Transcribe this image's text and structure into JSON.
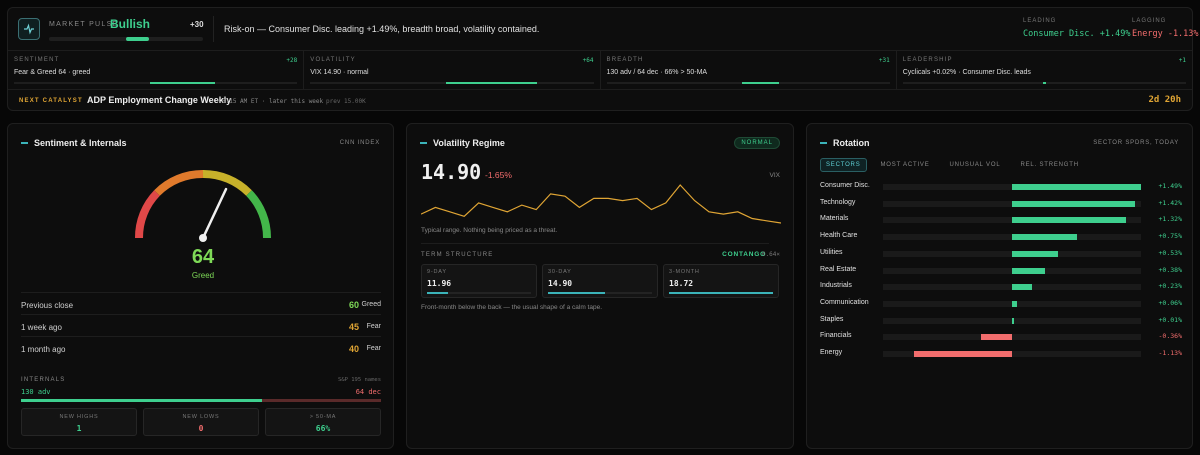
{
  "pulse": {
    "label": "MARKET PULSE",
    "value": "Bullish",
    "score": "+30",
    "summary": "Risk-on — Consumer Disc. leading +1.49%, breadth broad, volatility contained.",
    "leading_label": "LEADING",
    "leading_value": "Consumer Disc. +1.49%",
    "lagging_label": "LAGGING",
    "lagging_value": "Energy -1.13%"
  },
  "metrics": [
    {
      "title": "SENTIMENT",
      "score": "+28",
      "desc": "Fear & Greed 64 · greed",
      "fill": 0.23
    },
    {
      "title": "VOLATILITY",
      "score": "+64",
      "desc": "VIX 14.90 · normal",
      "fill": 0.32
    },
    {
      "title": "BREADTH",
      "score": "+31",
      "desc": "130 adv / 64 dec · 66% > 50-MA",
      "fill": 0.13
    },
    {
      "title": "LEADERSHIP",
      "score": "+1",
      "desc": "Cyclicals +0.02% · Consumer Disc. leads",
      "fill": 0.01
    }
  ],
  "catalyst": {
    "label": "NEXT CATALYST",
    "name": "ADP Employment Change Weekly",
    "when": "8:15 AM ET · later this week",
    "prev": "prev 15.00K",
    "countdown": "2d 20h"
  },
  "sentiment": {
    "title": "Sentiment & Internals",
    "subtitle": "CNN INDEX",
    "value": "64",
    "rating": "Greed",
    "gauge_value": 64,
    "history": [
      {
        "label": "Previous close",
        "value": "60",
        "word": "Greed",
        "color": "#7ed957"
      },
      {
        "label": "1 week ago",
        "value": "45",
        "word": "Fear",
        "color": "#e0a534"
      },
      {
        "label": "1 month ago",
        "value": "40",
        "word": "Fear",
        "color": "#e0a534"
      }
    ],
    "internals_label": "INTERNALS",
    "internals_sub": "S&P 195 names",
    "adv": "130 adv",
    "dec": "64 dec",
    "adv_fraction": 0.67,
    "stats": [
      {
        "label": "NEW HIGHS",
        "value": "1",
        "color": "#3ecf8e"
      },
      {
        "label": "NEW LOWS",
        "value": "0",
        "color": "#f26d6d"
      },
      {
        "label": "> 50-MA",
        "value": "66%",
        "color": "#3ecf8e"
      }
    ]
  },
  "volatility": {
    "title": "Volatility Regime",
    "badge": "NORMAL",
    "value": "14.90",
    "change": "-1.65%",
    "tag": "VIX",
    "note": "Typical range. Nothing being priced as a threat.",
    "term_label": "TERM STRUCTURE",
    "term_state": "CONTANGO",
    "term_ratio": "0.64×",
    "term": [
      {
        "label": "9-DAY",
        "value": "11.96",
        "fill": 0.2
      },
      {
        "label": "30-DAY",
        "value": "14.90",
        "fill": 0.55
      },
      {
        "label": "3-MONTH",
        "value": "18.72",
        "fill": 1.0
      }
    ],
    "term_note": "Front-month below the back — the usual shape of a calm tape."
  },
  "rotation": {
    "title": "Rotation",
    "subtitle": "SECTOR SPDRS, TODAY",
    "tabs": [
      "SECTORS",
      "MOST ACTIVE",
      "UNUSUAL VOL",
      "REL. STRENGTH"
    ],
    "active_tab": 0,
    "sectors": [
      {
        "name": "Consumer Disc.",
        "value": 1.49,
        "label": "+1.49%"
      },
      {
        "name": "Technology",
        "value": 1.42,
        "label": "+1.42%"
      },
      {
        "name": "Materials",
        "value": 1.32,
        "label": "+1.32%"
      },
      {
        "name": "Health Care",
        "value": 0.75,
        "label": "+0.75%"
      },
      {
        "name": "Utilities",
        "value": 0.53,
        "label": "+0.53%"
      },
      {
        "name": "Real Estate",
        "value": 0.38,
        "label": "+0.38%"
      },
      {
        "name": "Industrials",
        "value": 0.23,
        "label": "+0.23%"
      },
      {
        "name": "Communication",
        "value": 0.06,
        "label": "+0.06%"
      },
      {
        "name": "Staples",
        "value": 0.01,
        "label": "+0.01%"
      },
      {
        "name": "Financials",
        "value": -0.36,
        "label": "-0.36%"
      },
      {
        "name": "Energy",
        "value": -1.13,
        "label": "-1.13%"
      }
    ],
    "positive_color": "#3ecf8e",
    "negative_color": "#f26d6d"
  },
  "chart_data": {
    "type": "line",
    "series": [
      {
        "values": [
          15.3,
          15.6,
          15.4,
          15.2,
          15.8,
          15.6,
          15.4,
          15.7,
          15.5,
          16.2,
          16.1,
          15.6,
          16.0,
          16.0,
          15.9,
          16.0,
          15.5,
          15.8,
          16.6,
          15.9,
          15.4,
          15.3,
          15.4,
          15.1,
          15.0,
          14.9
        ]
      }
    ],
    "color": "#e0a534"
  }
}
